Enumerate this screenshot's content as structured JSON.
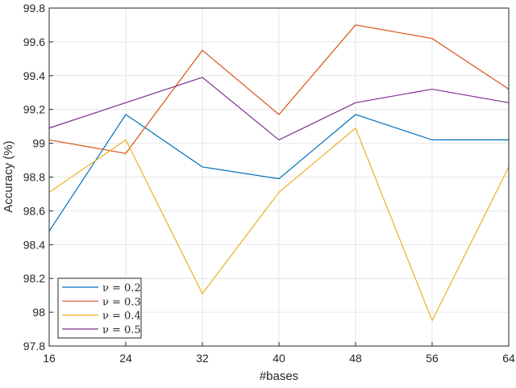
{
  "chart_data": {
    "type": "line",
    "title": "",
    "xlabel": "#bases",
    "ylabel": "Accuracy (%)",
    "x": [
      16,
      24,
      32,
      40,
      48,
      56,
      64
    ],
    "xlim": [
      16,
      64
    ],
    "ylim": [
      97.8,
      99.8
    ],
    "xticks": [
      "16",
      "24",
      "32",
      "40",
      "48",
      "56",
      "64"
    ],
    "yticks": [
      "97.8",
      "98",
      "98.2",
      "98.4",
      "98.6",
      "98.8",
      "99",
      "99.2",
      "99.4",
      "99.6",
      "99.8"
    ],
    "grid": true,
    "legend_position": "bottom-left",
    "series": [
      {
        "name": "ν = 0.2",
        "color": "#0072BD",
        "values": [
          98.48,
          99.17,
          98.86,
          98.79,
          99.17,
          99.02,
          99.02
        ]
      },
      {
        "name": "ν = 0.3",
        "color": "#D95319",
        "values": [
          99.02,
          98.94,
          99.55,
          99.17,
          99.7,
          99.62,
          99.32
        ]
      },
      {
        "name": "ν = 0.4",
        "color": "#EDB120",
        "values": [
          98.71,
          99.02,
          98.11,
          98.71,
          99.09,
          97.95,
          98.86
        ]
      },
      {
        "name": "ν = 0.5",
        "color": "#7E2F8E",
        "values": [
          99.09,
          99.24,
          99.39,
          99.02,
          99.24,
          99.32,
          99.24
        ]
      }
    ]
  }
}
